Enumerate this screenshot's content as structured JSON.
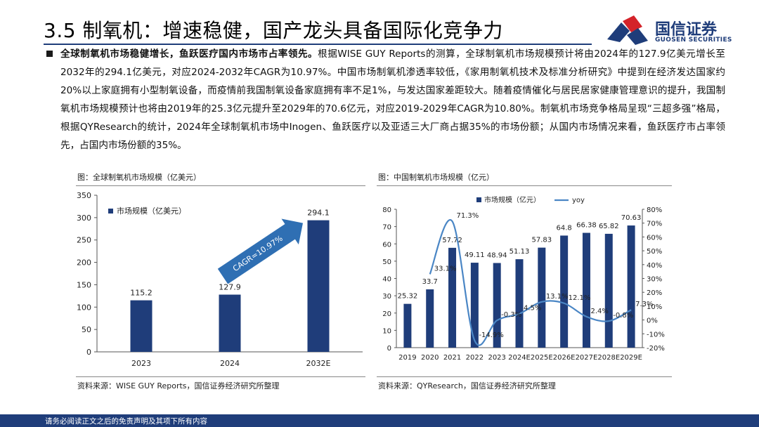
{
  "header": {
    "title": "3.5 制氧机：增速稳健，国产龙头具备国际化竞争力",
    "logo_cn": "国信证券",
    "logo_en": "GUOSEN SECURITIES"
  },
  "body": {
    "lead": "全球制氧机市场稳健增长，鱼跃医疗国内市场市占率领先。",
    "text": "根据WISE GUY Reports的测算，全球制氧机市场规模预计将由2024年的127.9亿美元增长至2032年的294.1亿美元，对应2024-2032年CAGR为10.97%。中国市场制氧机渗透率较低，《家用制氧机技术及标准分析研究》中提到在经济发达国家约20%以上家庭拥有小型制氧设备，而疫情前我国制氧设备家庭拥有率不足1%，与发达国家差距较大。随着疫情催化与居民居家健康管理意识的提升，我国制氧机市场规模预计也将由2019年的25.3亿元提升至2029年的70.6亿元，对应2019-2029年CAGR为10.80%。制氧机市场竞争格局呈现“三超多强”格局，根据QYResearch的统计，2024年全球制氧机市场中Inogen、鱼跃医疗以及亚适三大厂商占据35%的市场份额；从国内市场情况来看，鱼跃医疗市占率领先，占国内市场份额的35%。"
  },
  "left_figure": {
    "title": "图：全球制氧机市场规模（亿美元）",
    "source": "资料来源：WISE GUY Reports，国信证券经济研究所整理",
    "cagr_label": "CAGR=10.97%"
  },
  "right_figure": {
    "title": "图：中国制氧机市场规模（亿元）",
    "source": "资料来源：QYResearch，国信证券经济研究所整理"
  },
  "footer": {
    "text": "请务必阅读正文之后的免责声明及其项下所有内容"
  },
  "colors": {
    "brand_navy": "#1f3d7a",
    "bar": "#1f3d7a",
    "line": "#4a86c5",
    "logo_red": "#d4232a"
  },
  "chart_data": [
    {
      "type": "bar",
      "categories": [
        "2023",
        "2024",
        "2032E"
      ],
      "series": [
        {
          "name": "市场规模（亿美元）",
          "values": [
            115.2,
            127.9,
            294.1
          ]
        }
      ],
      "data_labels": [
        "115.2",
        "127.9",
        "294.1"
      ],
      "ylim": [
        0,
        350
      ],
      "yticks": [
        0,
        50,
        100,
        150,
        200,
        250,
        300,
        350
      ],
      "legend": "top-left",
      "annotation": "CAGR=10.97%",
      "grid": false
    },
    {
      "type": "bar",
      "categories": [
        "2019",
        "2020",
        "2021",
        "2022",
        "2023",
        "2024E",
        "2025E",
        "2026E",
        "2027E",
        "2028E",
        "2029E"
      ],
      "series": [
        {
          "name": "市场规模（亿元）",
          "type": "bar",
          "axis": "left",
          "values": [
            25.32,
            33.7,
            57.72,
            49.11,
            48.94,
            51.13,
            57.83,
            64.8,
            66.38,
            65.82,
            70.63
          ]
        },
        {
          "name": "yoy",
          "type": "line",
          "axis": "right",
          "values": [
            null,
            33.1,
            71.3,
            -14.9,
            -0.3,
            4.5,
            13.1,
            12.1,
            2.4,
            -0.8,
            7.3
          ]
        }
      ],
      "bar_labels": [
        "25.32",
        "33.7",
        "57.72",
        "49.11",
        "48.94",
        "51.13",
        "57.83",
        "64.8",
        "66.38",
        "65.82",
        "70.63"
      ],
      "line_labels": [
        "",
        "33.1%",
        "71.3%",
        "-14.9%",
        "-0.3%",
        "4.5%",
        "13.1%",
        "12.1%",
        "2.4%",
        "-0.8%",
        "7.3%"
      ],
      "ylim": [
        0,
        80
      ],
      "yticks": [
        0,
        10,
        20,
        30,
        40,
        50,
        60,
        70,
        80
      ],
      "y2lim": [
        -20,
        80
      ],
      "y2ticks": [
        "-20%",
        "-10%",
        "0%",
        "10%",
        "20%",
        "30%",
        "40%",
        "50%",
        "60%",
        "70%",
        "80%"
      ],
      "legend": "top",
      "grid": false
    }
  ]
}
